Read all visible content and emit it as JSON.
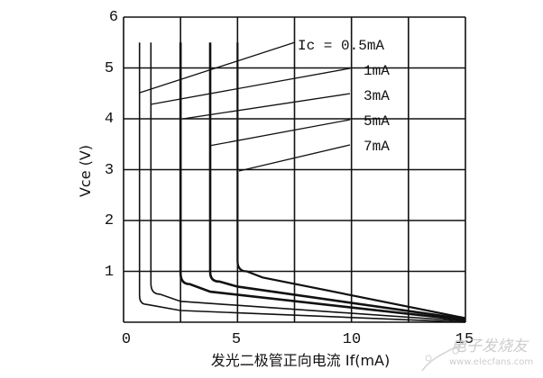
{
  "chart_data": {
    "type": "line",
    "title": "",
    "xlabel": "发光二极管正向电流 If(mA)",
    "ylabel": "Vce (V)",
    "xlim": [
      0,
      15
    ],
    "ylim": [
      0,
      6
    ],
    "x_ticks": [
      "0",
      "5",
      "10",
      "15"
    ],
    "y_ticks": [
      "1",
      "2",
      "3",
      "4",
      "5",
      "6"
    ],
    "grid": true,
    "grid_x": [
      0,
      2.5,
      5,
      7.5,
      10,
      12.5,
      15
    ],
    "grid_y": [
      0,
      1,
      2,
      3,
      4,
      5,
      6
    ],
    "series": [
      {
        "name": "Ic = 0.5mA",
        "label": "Ic = 0.5mA",
        "points": [
          [
            0.7,
            5.5
          ],
          [
            0.7,
            0.53
          ],
          [
            1.0,
            0.35
          ],
          [
            2.5,
            0.23
          ],
          [
            15,
            0.0
          ]
        ]
      },
      {
        "name": "1mA",
        "label": "1mA",
        "points": [
          [
            1.2,
            5.5
          ],
          [
            1.2,
            0.76
          ],
          [
            1.6,
            0.55
          ],
          [
            2.5,
            0.41
          ],
          [
            15,
            0.02
          ]
        ]
      },
      {
        "name": "3mA",
        "label": "3mA",
        "points": [
          [
            2.5,
            5.5
          ],
          [
            2.5,
            0.97
          ],
          [
            2.9,
            0.75
          ],
          [
            3.8,
            0.6
          ],
          [
            15,
            0.04
          ]
        ]
      },
      {
        "name": "5mA",
        "label": "5mA",
        "points": [
          [
            3.8,
            5.5
          ],
          [
            3.8,
            0.99
          ],
          [
            4.2,
            0.8
          ],
          [
            5.0,
            0.7
          ],
          [
            15,
            0.06
          ]
        ]
      },
      {
        "name": "7mA",
        "label": "7mA",
        "points": [
          [
            5.0,
            5.5
          ],
          [
            5.0,
            1.21
          ],
          [
            5.4,
            1.0
          ],
          [
            6.1,
            0.88
          ],
          [
            15,
            0.08
          ]
        ]
      }
    ],
    "annotations": [
      {
        "text": "Ic = 0.5mA",
        "points_to_series": 0
      },
      {
        "text": "1mA",
        "points_to_series": 1
      },
      {
        "text": "3mA",
        "points_to_series": 2
      },
      {
        "text": "5mA",
        "points_to_series": 3
      },
      {
        "text": "7mA",
        "points_to_series": 4
      }
    ]
  },
  "watermark": {
    "brand": "电子发烧友",
    "url": "www.elecfans.com"
  }
}
